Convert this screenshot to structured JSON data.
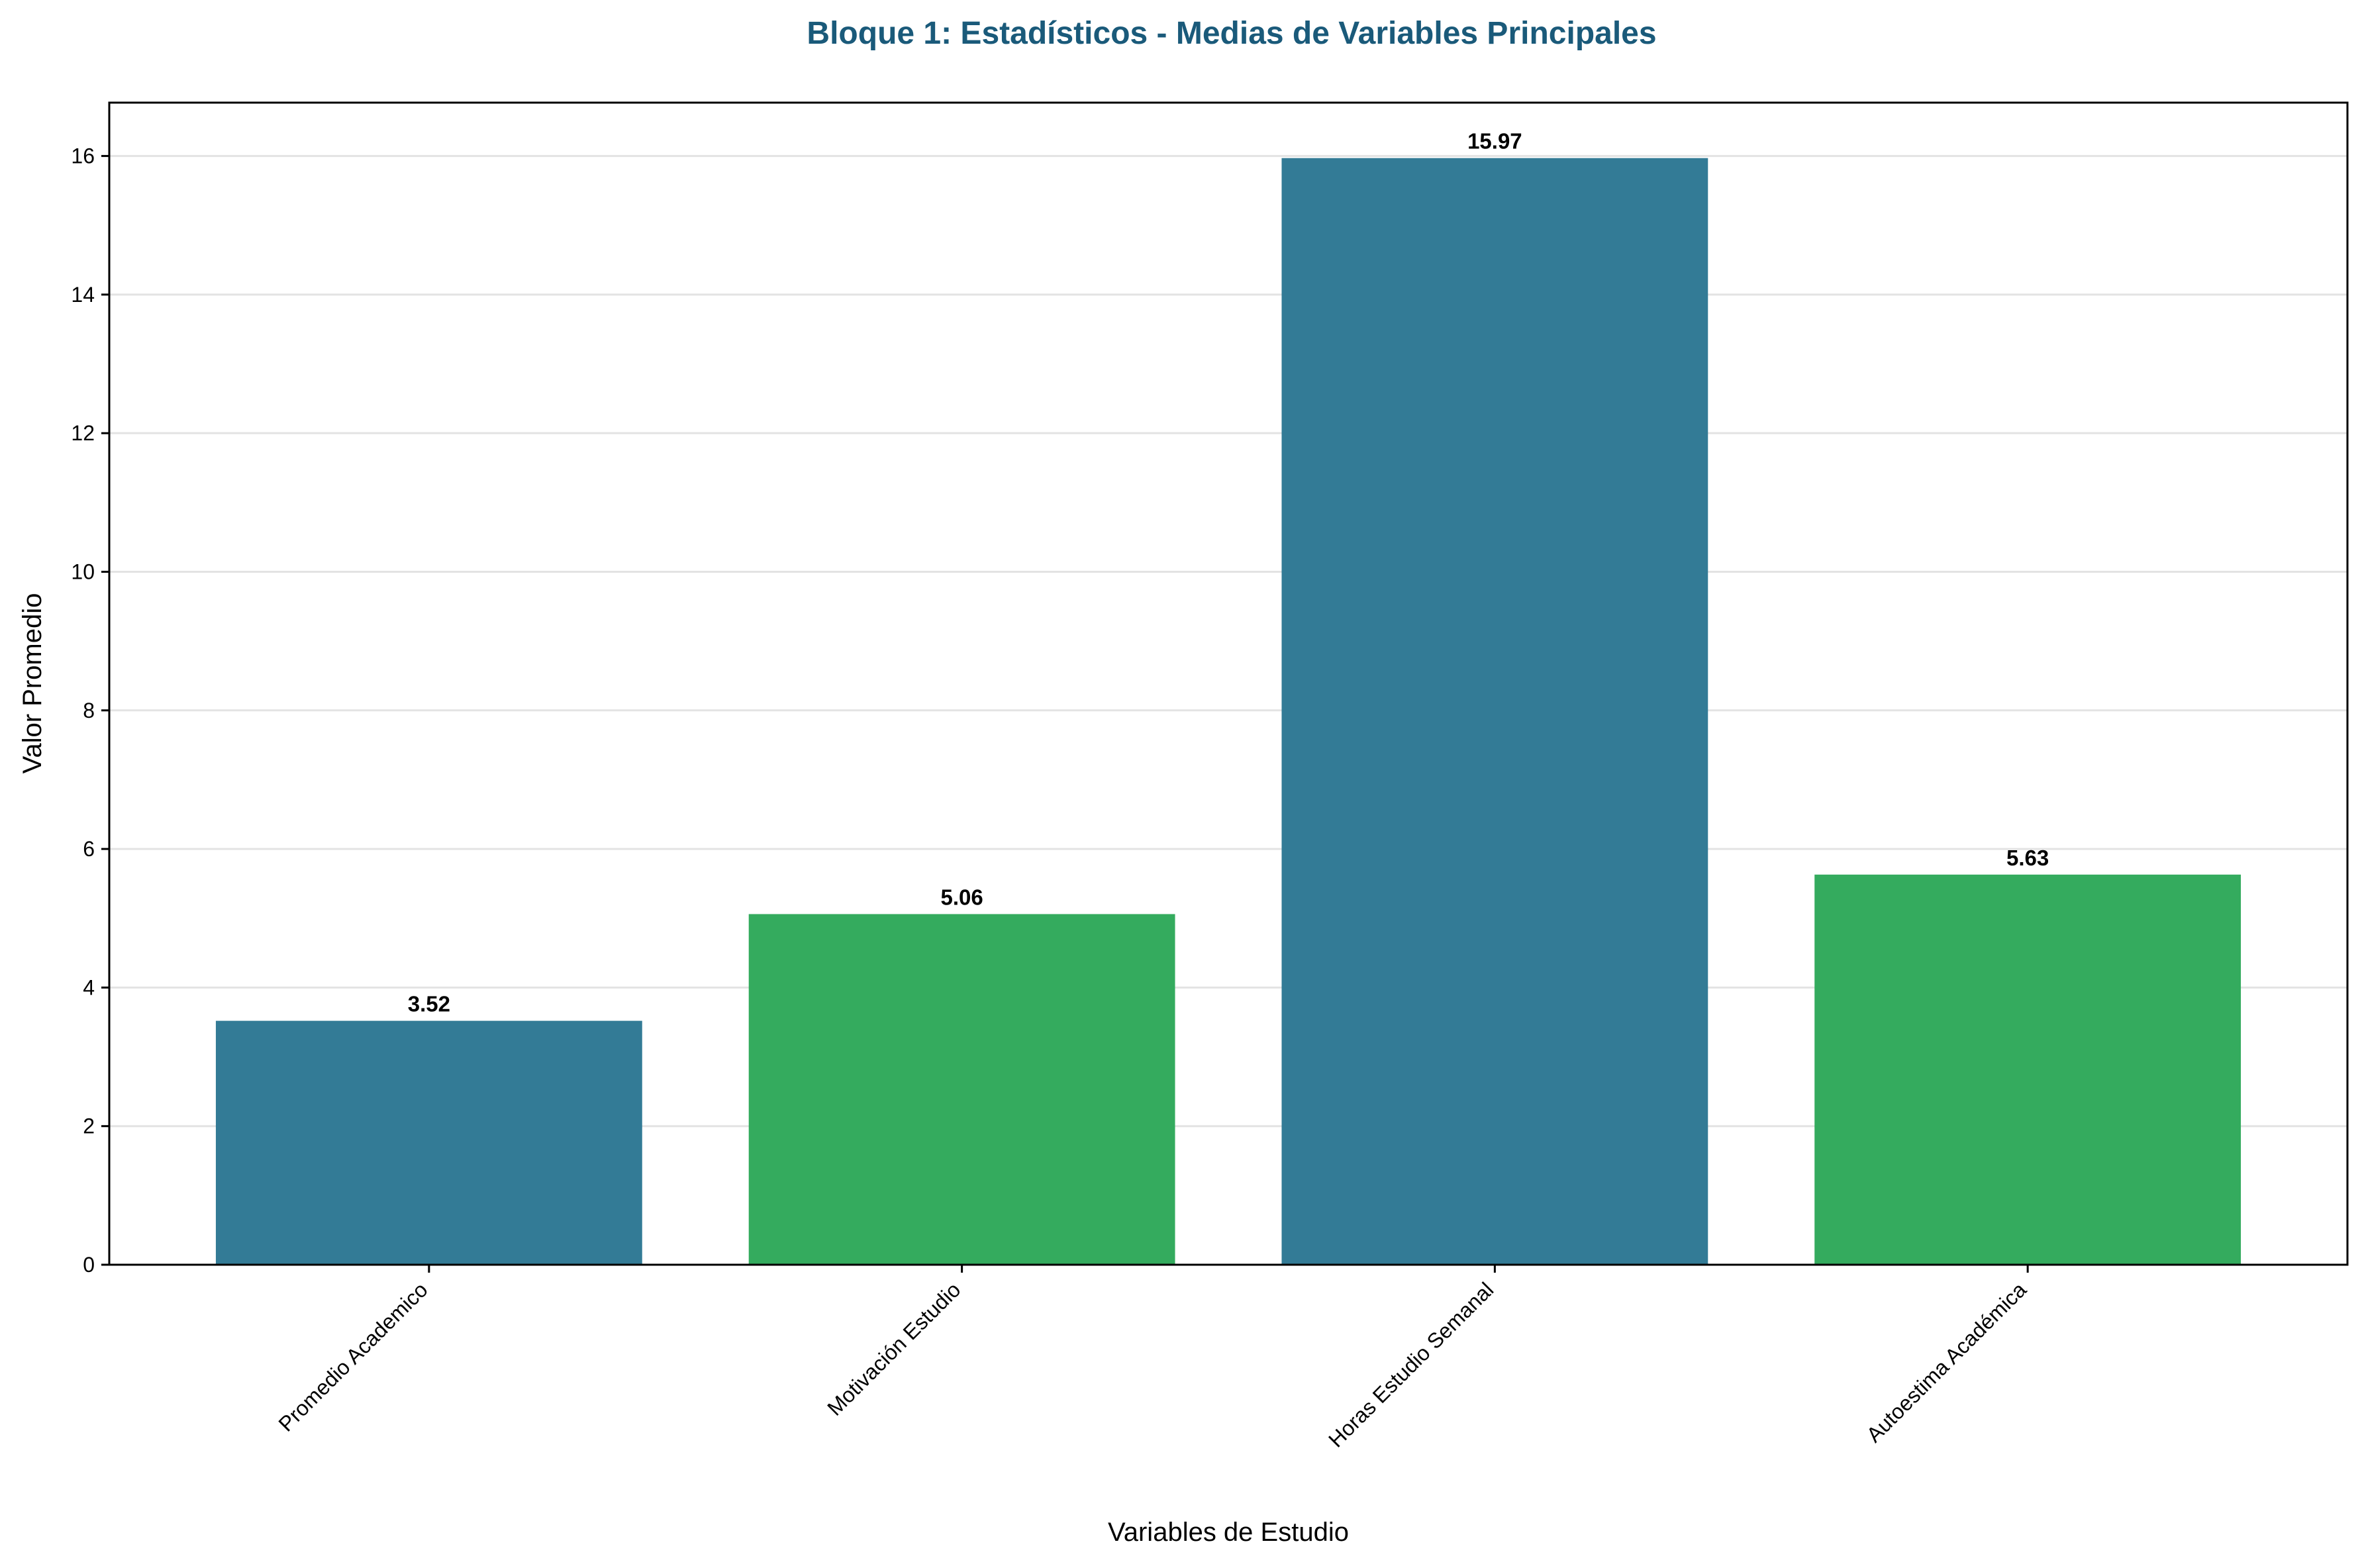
{
  "chart_data": {
    "type": "bar",
    "title": "Bloque 1: Estadísticos - Medias de Variables Principales",
    "title_color": "#1a5a7a",
    "xlabel": "Variables de Estudio",
    "ylabel": "Valor Promedio",
    "categories": [
      "Promedio Academico",
      "Motivación Estudio",
      "Horas Estudio Semanal",
      "Autoestima Académica"
    ],
    "values": [
      3.52,
      5.06,
      15.97,
      5.63
    ],
    "value_labels": [
      "3.52",
      "5.06",
      "15.97",
      "5.63"
    ],
    "bar_colors": [
      "#337b96",
      "#34ab5e",
      "#337b96",
      "#34ab5e"
    ],
    "ylim": [
      0,
      16.77
    ],
    "yticks": [
      0,
      2,
      4,
      6,
      8,
      10,
      12,
      14,
      16
    ],
    "ytick_labels": [
      "0",
      "2",
      "4",
      "6",
      "8",
      "10",
      "12",
      "14",
      "16"
    ],
    "grid": "y",
    "legend": "none"
  }
}
